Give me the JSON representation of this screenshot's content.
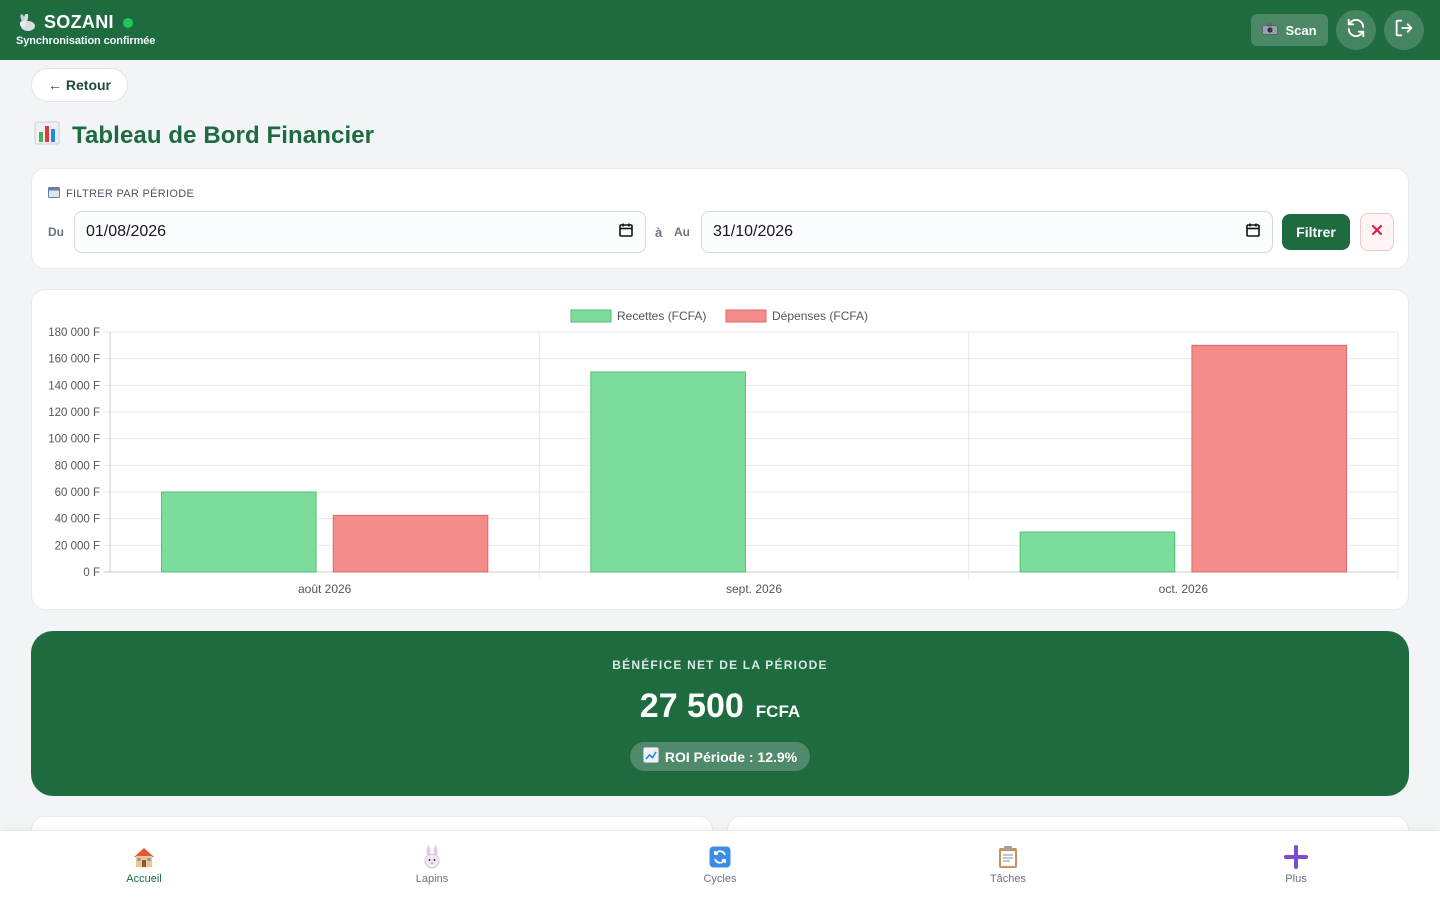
{
  "header": {
    "app_name": "SOZANI",
    "status_text": "Synchronisation confirmée",
    "scan_label": "Scan",
    "colors": {
      "header_bg": "#1e6b40",
      "online": "#22c55e"
    }
  },
  "back_label": "← Retour",
  "page_title": "Tableau de Bord Financier",
  "filter": {
    "section_label": "FILTRER PAR PÉRIODE",
    "from_label": "Du",
    "separator": "à",
    "to_label": "Au",
    "from_value": "01/08/2026",
    "to_value": "31/10/2026",
    "submit_label": "Filtrer"
  },
  "chart_data": {
    "type": "bar",
    "categories": [
      "août 2026",
      "sept. 2026",
      "oct. 2026"
    ],
    "series": [
      {
        "name": "Recettes (FCFA)",
        "values": [
          60000,
          150000,
          30000
        ],
        "color": "#7ddc9c"
      },
      {
        "name": "Dépenses (FCFA)",
        "values": [
          42500,
          0,
          170000
        ],
        "color": "#f48c8c"
      }
    ],
    "ylim": [
      0,
      180000
    ],
    "y_ticks": [
      "0 F",
      "20 000 F",
      "40 000 F",
      "60 000 F",
      "80 000 F",
      "100 000 F",
      "120 000 F",
      "140 000 F",
      "160 000 F",
      "180 000 F"
    ],
    "legend_position": "top",
    "grid": true
  },
  "profit": {
    "label": "BÉNÉFICE NET DE LA PÉRIODE",
    "amount": "27 500",
    "unit": "FCFA",
    "roi_text": "ROI Période : 12.9%"
  },
  "nav": [
    {
      "label": "Accueil",
      "icon": "house-icon",
      "active": true
    },
    {
      "label": "Lapins",
      "icon": "rabbit-icon",
      "active": false
    },
    {
      "label": "Cycles",
      "icon": "cycle-icon",
      "active": false
    },
    {
      "label": "Tâches",
      "icon": "clipboard-icon",
      "active": false
    },
    {
      "label": "Plus",
      "icon": "plus-icon",
      "active": false
    }
  ]
}
